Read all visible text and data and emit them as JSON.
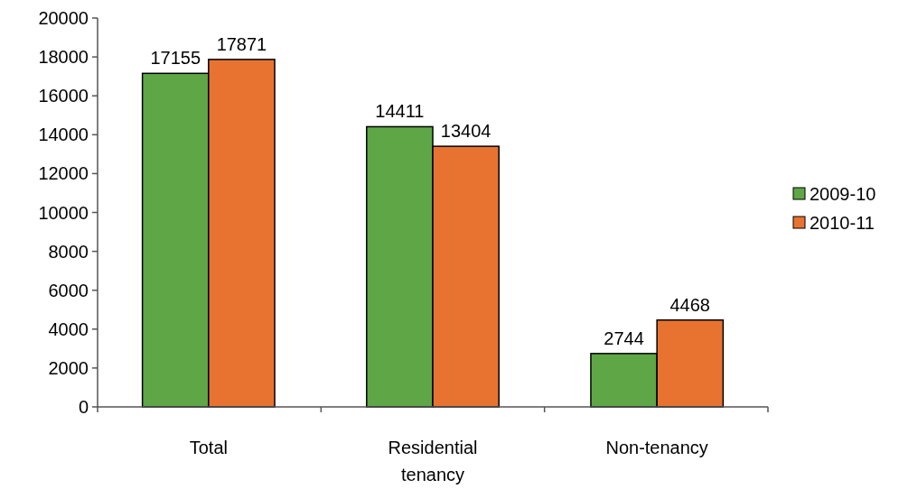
{
  "chart_data": {
    "type": "bar",
    "categories": [
      "Total",
      "Residential tenancy",
      "Non-tenancy"
    ],
    "series": [
      {
        "name": "2009-10",
        "color": "#5ea646",
        "values": [
          17155,
          14411,
          2744
        ]
      },
      {
        "name": "2010-11",
        "color": "#e87330",
        "values": [
          17871,
          13404,
          4468
        ]
      }
    ],
    "ylim": [
      0,
      20000
    ],
    "yticks": [
      0,
      2000,
      4000,
      6000,
      8000,
      10000,
      12000,
      14000,
      16000,
      18000,
      20000
    ],
    "data_labels": true,
    "legend": "right",
    "grid": false
  }
}
